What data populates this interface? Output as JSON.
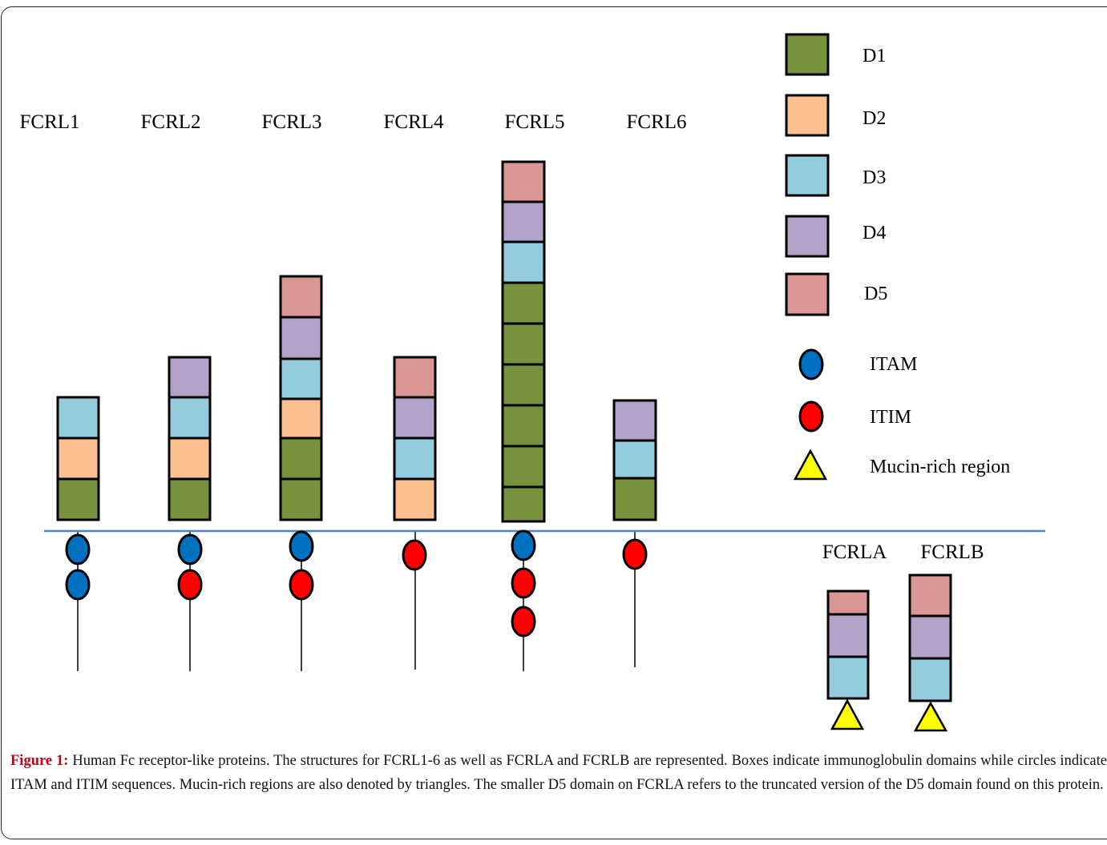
{
  "colors": {
    "D1": "#76923c",
    "D2": "#fac090",
    "D3": "#93cddd",
    "D4": "#b2a2c7",
    "D5": "#d99694",
    "ITAM": "#0070c0",
    "ITIM": "#ff0000",
    "Mucin": "#ffff00",
    "membrane": "#4f81bd",
    "caption_label": "#c0001b"
  },
  "receptors": [
    {
      "name": "FCRL1",
      "domains": [
        "D1",
        "D2",
        "D3"
      ],
      "motifs": [
        "ITAM",
        "ITAM"
      ]
    },
    {
      "name": "FCRL2",
      "domains": [
        "D1",
        "D2",
        "D3",
        "D4"
      ],
      "motifs": [
        "ITAM",
        "ITIM"
      ]
    },
    {
      "name": "FCRL3",
      "domains": [
        "D1",
        "D1",
        "D2",
        "D3",
        "D4",
        "D5"
      ],
      "motifs": [
        "ITAM",
        "ITIM"
      ]
    },
    {
      "name": "FCRL4",
      "domains": [
        "D2",
        "D3",
        "D4",
        "D5"
      ],
      "motifs": [
        "ITIM"
      ]
    },
    {
      "name": "FCRL5",
      "domains": [
        "D1",
        "D1",
        "D1",
        "D1",
        "D1",
        "D1",
        "D3",
        "D4",
        "D5"
      ],
      "motifs": [
        "ITAM",
        "ITIM",
        "ITIM"
      ]
    },
    {
      "name": "FCRL6",
      "domains": [
        "D1",
        "D3",
        "D4"
      ],
      "motifs": [
        "ITIM"
      ]
    }
  ],
  "intracellular": [
    {
      "name": "FCRLA",
      "domains": [
        "Mucin-rich region",
        "D3",
        "D4",
        "D5 (truncated)"
      ]
    },
    {
      "name": "FCRLB",
      "domains": [
        "Mucin-rich region",
        "D3",
        "D4",
        "D5"
      ]
    }
  ],
  "legend": {
    "d1": "D1",
    "d2": "D2",
    "d3": "D3",
    "d4": "D4",
    "d5": "D5",
    "itam": "ITAM",
    "itim": "ITIM",
    "mucin": "Mucin-rich region"
  },
  "caption": {
    "label": "Figure 1:",
    "text": " Human Fc receptor-like proteins. The structures for FCRL1-6 as well as FCRLA and FCRLB are represented. Boxes indicate immunoglobulin domains while circles indicate ITAM and ITIM sequences. Mucin-rich regions are also denoted by triangles. The smaller D5 domain on FCRLA refers to the truncated version of the D5 domain found on this protein."
  }
}
